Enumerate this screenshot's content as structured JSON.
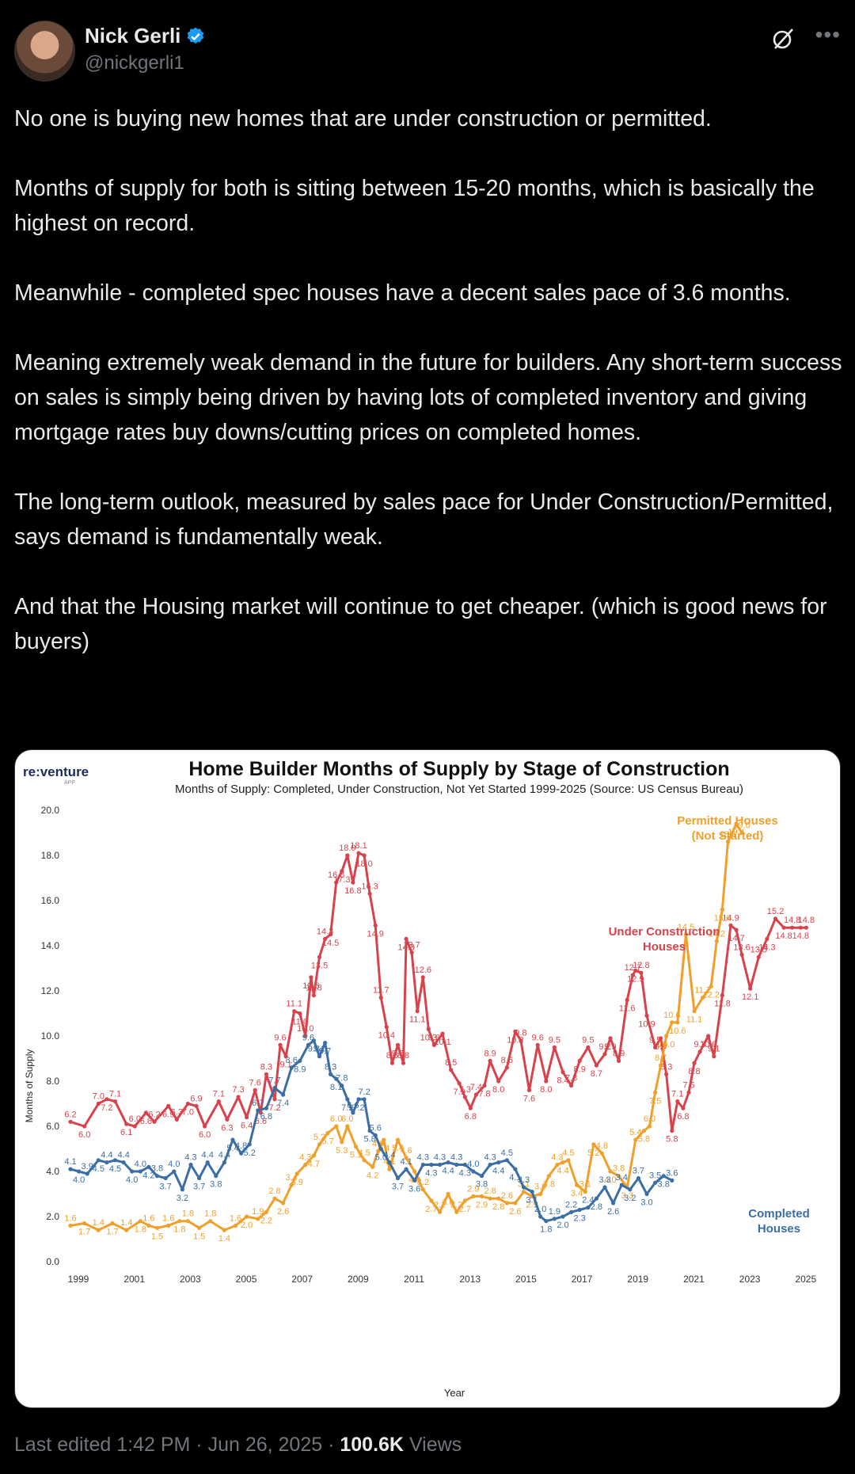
{
  "author": {
    "name": "Nick Gerli",
    "handle": "@nickgerli1"
  },
  "icons": {
    "avatar": "avatar-photo",
    "verified": "verified-badge-icon",
    "grok": "grok-icon",
    "more": "more-options-icon"
  },
  "tweet": {
    "paragraphs": [
      "No one is buying new homes that are under construction or permitted.",
      "Months of supply for both is sitting between 15-20 months, which is basically the highest on record.",
      "Meanwhile - completed spec houses have a decent sales pace of 3.6 months.",
      "Meaning extremely weak demand in the future for builders. Any short-term success on sales is simply being driven by having lots of completed inventory and giving mortgage rates buy downs/cutting prices on completed homes.",
      "The long-term outlook, measured by sales pace for Under Construction/Permitted, says demand is fundamentally weak.",
      "And that the Housing market will continue to get cheaper. (which is good news for buyers)"
    ]
  },
  "footer": {
    "edited": "Last edited 1:42 PM · Jun 26, 2025 · ",
    "views_count": "100.6K",
    "views_label": " Views"
  },
  "chart_logo": {
    "text": "re:venture",
    "sub": "APP"
  },
  "chart_data": {
    "type": "line",
    "title": "Home Builder Months of Supply by Stage of Construction",
    "subtitle": "Months of Supply: Completed, Under Construction, Not Yet Started 1999-2025 (Source: US Census Bureau)",
    "xlabel": "Year",
    "ylabel": "Months of Supply",
    "xlim": [
      1999,
      2025.6
    ],
    "ylim": [
      0,
      20
    ],
    "yticks": [
      "0.0",
      "2.0",
      "4.0",
      "6.0",
      "8.0",
      "10.0",
      "12.0",
      "14.0",
      "16.0",
      "18.0",
      "20.0"
    ],
    "xticks": [
      "1999",
      "2001",
      "2003",
      "2005",
      "2007",
      "2009",
      "2011",
      "2013",
      "2015",
      "2017",
      "2019",
      "2021",
      "2023",
      "2025"
    ],
    "grid": false,
    "series": [
      {
        "name": "Under Construction Houses",
        "color": "#d9424b",
        "points": [
          [
            1999,
            6.2
          ],
          [
            1999.5,
            6.0
          ],
          [
            2000,
            7.0
          ],
          [
            2000.3,
            7.2
          ],
          [
            2000.6,
            7.1
          ],
          [
            2001,
            6.1
          ],
          [
            2001.3,
            6.0
          ],
          [
            2001.7,
            6.6
          ],
          [
            2002,
            6.2
          ],
          [
            2002.5,
            6.9
          ],
          [
            2002.8,
            6.3
          ],
          [
            2003.2,
            7.0
          ],
          [
            2003.5,
            6.9
          ],
          [
            2003.8,
            6.0
          ],
          [
            2004.3,
            7.1
          ],
          [
            2004.6,
            6.3
          ],
          [
            2005,
            7.3
          ],
          [
            2005.3,
            6.4
          ],
          [
            2005.6,
            7.6
          ],
          [
            2005.8,
            6.6
          ],
          [
            2006,
            8.3
          ],
          [
            2006.3,
            7.2
          ],
          [
            2006.5,
            9.6
          ],
          [
            2006.7,
            9.1
          ],
          [
            2007,
            11.1
          ],
          [
            2007.2,
            11.0
          ],
          [
            2007.4,
            10.0
          ],
          [
            2007.6,
            12.6
          ],
          [
            2007.7,
            11.8
          ],
          [
            2007.9,
            13.5
          ],
          [
            2008.1,
            14.3
          ],
          [
            2008.3,
            14.5
          ],
          [
            2008.5,
            16.8
          ],
          [
            2008.7,
            17.3
          ],
          [
            2008.9,
            18.0
          ],
          [
            2009.1,
            16.8
          ],
          [
            2009.3,
            18.1
          ],
          [
            2009.5,
            18.0
          ],
          [
            2009.7,
            16.3
          ],
          [
            2009.9,
            14.9
          ],
          [
            2010.1,
            11.7
          ],
          [
            2010.3,
            10.4
          ],
          [
            2010.5,
            8.8
          ],
          [
            2010.7,
            9.6
          ],
          [
            2010.9,
            8.8
          ],
          [
            2011,
            14.3
          ],
          [
            2011.2,
            13.7
          ],
          [
            2011.4,
            11.1
          ],
          [
            2011.6,
            12.6
          ],
          [
            2011.8,
            10.3
          ],
          [
            2012,
            9.6
          ],
          [
            2012.3,
            10.1
          ],
          [
            2012.6,
            8.5
          ],
          [
            2012.9,
            7.9
          ],
          [
            2013.1,
            7.3
          ],
          [
            2013.3,
            6.8
          ],
          [
            2013.5,
            7.4
          ],
          [
            2013.8,
            7.8
          ],
          [
            2014,
            8.9
          ],
          [
            2014.3,
            8.0
          ],
          [
            2014.6,
            8.6
          ],
          [
            2014.9,
            10.2
          ],
          [
            2015.1,
            9.8
          ],
          [
            2015.4,
            7.6
          ],
          [
            2015.7,
            9.6
          ],
          [
            2016,
            8.0
          ],
          [
            2016.3,
            9.5
          ],
          [
            2016.6,
            8.4
          ],
          [
            2016.9,
            7.8
          ],
          [
            2017.2,
            8.9
          ],
          [
            2017.5,
            9.5
          ],
          [
            2017.8,
            8.7
          ],
          [
            2018.1,
            9.2
          ],
          [
            2018.3,
            9.9
          ],
          [
            2018.6,
            8.9
          ],
          [
            2018.9,
            11.6
          ],
          [
            2019.1,
            12.7
          ],
          [
            2019.2,
            12.9
          ],
          [
            2019.4,
            12.8
          ],
          [
            2019.6,
            10.9
          ],
          [
            2019.9,
            9.5
          ],
          [
            2020.1,
            9.9
          ],
          [
            2020.3,
            8.3
          ],
          [
            2020.5,
            5.8
          ],
          [
            2020.7,
            7.1
          ],
          [
            2020.9,
            6.8
          ],
          [
            2021.1,
            7.5
          ],
          [
            2021.3,
            8.8
          ],
          [
            2021.5,
            9.3
          ],
          [
            2021.8,
            10.0
          ],
          [
            2022,
            9.1
          ],
          [
            2022.3,
            11.8
          ],
          [
            2022.6,
            14.9
          ],
          [
            2022.8,
            14.7
          ],
          [
            2023,
            13.6
          ],
          [
            2023.3,
            12.1
          ],
          [
            2023.6,
            13.5
          ],
          [
            2023.9,
            14.3
          ],
          [
            2024.2,
            15.2
          ],
          [
            2024.5,
            14.8
          ],
          [
            2024.8,
            14.8
          ],
          [
            2025.1,
            14.8
          ],
          [
            2025.3,
            14.8
          ]
        ]
      },
      {
        "name": "Permitted Houses (Not Started)",
        "color": "#f0a02a",
        "points": [
          [
            1999,
            1.6
          ],
          [
            1999.5,
            1.7
          ],
          [
            2000,
            1.4
          ],
          [
            2000.5,
            1.7
          ],
          [
            2001,
            1.4
          ],
          [
            2001.5,
            1.8
          ],
          [
            2001.8,
            1.6
          ],
          [
            2002.1,
            1.5
          ],
          [
            2002.5,
            1.6
          ],
          [
            2002.9,
            1.8
          ],
          [
            2003.2,
            1.8
          ],
          [
            2003.6,
            1.5
          ],
          [
            2004,
            1.8
          ],
          [
            2004.5,
            1.4
          ],
          [
            2004.9,
            1.6
          ],
          [
            2005.3,
            2.0
          ],
          [
            2005.7,
            1.9
          ],
          [
            2006,
            2.2
          ],
          [
            2006.3,
            2.8
          ],
          [
            2006.6,
            2.6
          ],
          [
            2006.9,
            3.4
          ],
          [
            2007.1,
            3.9
          ],
          [
            2007.4,
            4.3
          ],
          [
            2007.7,
            4.7
          ],
          [
            2007.9,
            5.2
          ],
          [
            2008.2,
            5.7
          ],
          [
            2008.5,
            6.0
          ],
          [
            2008.7,
            5.3
          ],
          [
            2008.9,
            6.0
          ],
          [
            2009.2,
            5.1
          ],
          [
            2009.5,
            4.5
          ],
          [
            2009.8,
            4.2
          ],
          [
            2010,
            4.9
          ],
          [
            2010.2,
            5.4
          ],
          [
            2010.4,
            4.1
          ],
          [
            2010.7,
            5.4
          ],
          [
            2011,
            4.6
          ],
          [
            2011.3,
            4.0
          ],
          [
            2011.6,
            3.2
          ],
          [
            2011.9,
            2.7
          ],
          [
            2012.2,
            2.2
          ],
          [
            2012.5,
            3.0
          ],
          [
            2012.8,
            2.2
          ],
          [
            2013.1,
            2.7
          ],
          [
            2013.4,
            2.9
          ],
          [
            2013.7,
            2.9
          ],
          [
            2014,
            2.8
          ],
          [
            2014.3,
            2.8
          ],
          [
            2014.6,
            2.6
          ],
          [
            2014.9,
            2.6
          ],
          [
            2015.2,
            3.1
          ],
          [
            2015.5,
            2.9
          ],
          [
            2015.8,
            3.0
          ],
          [
            2016.1,
            3.8
          ],
          [
            2016.4,
            4.3
          ],
          [
            2016.6,
            4.4
          ],
          [
            2016.8,
            4.5
          ],
          [
            2017.1,
            3.4
          ],
          [
            2017.4,
            3.1
          ],
          [
            2017.7,
            5.2
          ],
          [
            2018,
            4.8
          ],
          [
            2018.3,
            4.0
          ],
          [
            2018.6,
            3.8
          ],
          [
            2018.9,
            3.3
          ],
          [
            2019.2,
            5.4
          ],
          [
            2019.5,
            5.8
          ],
          [
            2019.7,
            6.0
          ],
          [
            2019.9,
            7.5
          ],
          [
            2020.1,
            8.7
          ],
          [
            2020.3,
            10.0
          ],
          [
            2020.5,
            10.6
          ],
          [
            2020.7,
            10.6
          ],
          [
            2021,
            14.5
          ],
          [
            2021.3,
            11.1
          ],
          [
            2021.6,
            11.7
          ],
          [
            2021.9,
            12.2
          ],
          [
            2022.1,
            14.2
          ],
          [
            2022.3,
            15.6
          ],
          [
            2022.5,
            18.6
          ],
          [
            2022.8,
            19.4
          ],
          [
            2023,
            19.0
          ]
        ]
      },
      {
        "name": "Completed Houses",
        "color": "#3a6ea5",
        "points": [
          [
            1999,
            4.1
          ],
          [
            1999.3,
            4.0
          ],
          [
            1999.6,
            3.9
          ],
          [
            2000,
            4.5
          ],
          [
            2000.3,
            4.4
          ],
          [
            2000.6,
            4.5
          ],
          [
            2000.9,
            4.4
          ],
          [
            2001.2,
            4.0
          ],
          [
            2001.5,
            4.0
          ],
          [
            2001.8,
            4.2
          ],
          [
            2002.1,
            3.8
          ],
          [
            2002.4,
            3.7
          ],
          [
            2002.7,
            4.0
          ],
          [
            2003,
            3.2
          ],
          [
            2003.3,
            4.3
          ],
          [
            2003.6,
            3.7
          ],
          [
            2003.9,
            4.4
          ],
          [
            2004.2,
            3.8
          ],
          [
            2004.5,
            4.4
          ],
          [
            2004.8,
            5.4
          ],
          [
            2005.1,
            4.8
          ],
          [
            2005.4,
            5.2
          ],
          [
            2005.7,
            6.7
          ],
          [
            2006,
            6.8
          ],
          [
            2006.3,
            7.7
          ],
          [
            2006.6,
            7.4
          ],
          [
            2006.9,
            8.6
          ],
          [
            2007.2,
            8.9
          ],
          [
            2007.5,
            9.6
          ],
          [
            2007.7,
            9.8
          ],
          [
            2007.9,
            9.1
          ],
          [
            2008.1,
            9.7
          ],
          [
            2008.3,
            8.3
          ],
          [
            2008.5,
            8.1
          ],
          [
            2008.7,
            7.8
          ],
          [
            2008.9,
            7.2
          ],
          [
            2009.1,
            6.6
          ],
          [
            2009.3,
            7.2
          ],
          [
            2009.5,
            7.2
          ],
          [
            2009.7,
            5.8
          ],
          [
            2009.9,
            5.6
          ],
          [
            2010.1,
            5.0
          ],
          [
            2010.4,
            4.4
          ],
          [
            2010.7,
            3.7
          ],
          [
            2011,
            4.1
          ],
          [
            2011.3,
            3.6
          ],
          [
            2011.6,
            4.3
          ],
          [
            2011.9,
            4.3
          ],
          [
            2012.2,
            4.3
          ],
          [
            2012.5,
            4.4
          ],
          [
            2012.8,
            4.3
          ],
          [
            2013.1,
            4.3
          ],
          [
            2013.4,
            4.0
          ],
          [
            2013.7,
            3.8
          ],
          [
            2014,
            4.3
          ],
          [
            2014.3,
            4.4
          ],
          [
            2014.6,
            4.5
          ],
          [
            2014.9,
            4.1
          ],
          [
            2015.2,
            3.3
          ],
          [
            2015.5,
            3.1
          ],
          [
            2015.8,
            2.0
          ],
          [
            2016,
            1.8
          ],
          [
            2016.3,
            1.9
          ],
          [
            2016.6,
            2.0
          ],
          [
            2016.9,
            2.2
          ],
          [
            2017.2,
            2.3
          ],
          [
            2017.5,
            2.4
          ],
          [
            2017.8,
            2.8
          ],
          [
            2018.1,
            3.3
          ],
          [
            2018.4,
            2.6
          ],
          [
            2018.7,
            3.4
          ],
          [
            2019,
            3.2
          ],
          [
            2019.3,
            3.7
          ],
          [
            2019.6,
            3.0
          ],
          [
            2019.9,
            3.5
          ],
          [
            2020.2,
            3.8
          ],
          [
            2020.5,
            3.6
          ]
        ]
      }
    ],
    "annotations": [
      {
        "text": "Permitted Houses",
        "color": "#f0a02a"
      },
      {
        "text": "(Not Started)",
        "color": "#f0a02a"
      },
      {
        "text": "Under Construction",
        "color": "#d9424b"
      },
      {
        "text": "Houses",
        "color": "#d9424b"
      },
      {
        "text": "Completed",
        "color": "#3a6ea5"
      },
      {
        "text": "Houses",
        "color": "#3a6ea5"
      }
    ]
  }
}
